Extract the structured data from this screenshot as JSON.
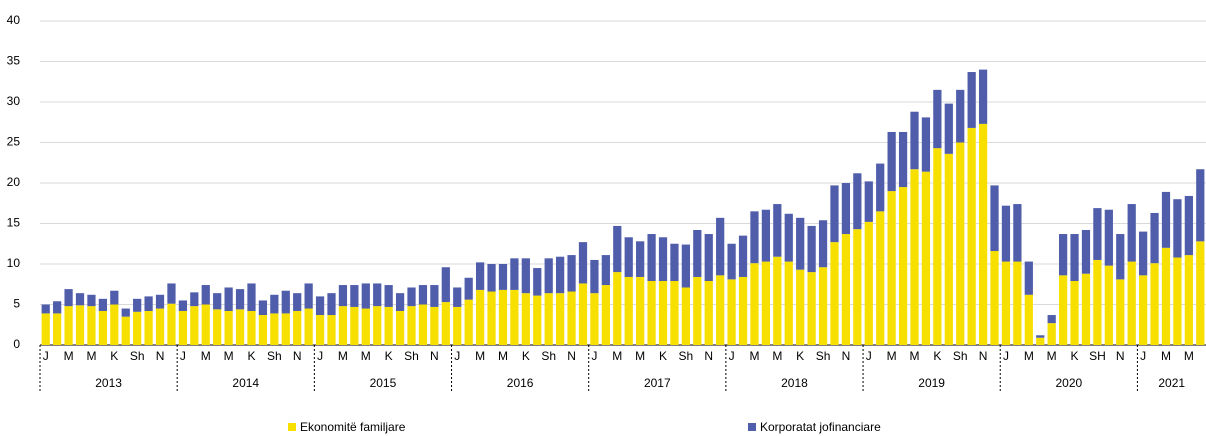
{
  "chart_data": {
    "type": "stacked_bar",
    "categories": [
      "J",
      null,
      "M",
      null,
      "M",
      null,
      "K",
      null,
      "Sh",
      null,
      "N",
      null,
      "J",
      null,
      "M",
      null,
      "M",
      null,
      "K",
      null,
      "Sh",
      null,
      "N",
      null,
      "J",
      null,
      "M",
      null,
      "M",
      null,
      "K",
      null,
      "Sh",
      null,
      "N",
      null,
      "J",
      null,
      "M",
      null,
      "M",
      null,
      "K",
      null,
      "Sh",
      null,
      "N",
      null,
      "J",
      null,
      "M",
      null,
      "M",
      null,
      "K",
      null,
      "Sh",
      null,
      "N",
      null,
      "J",
      null,
      "M",
      null,
      "M",
      null,
      "K",
      null,
      "Sh",
      null,
      "N",
      null,
      "J",
      null,
      "M",
      null,
      "M",
      null,
      "K",
      null,
      "Sh",
      null,
      "N",
      null,
      "J",
      null,
      "M",
      null,
      "M",
      null,
      "K",
      null,
      "SH",
      null,
      "N",
      null,
      "J",
      null,
      "M",
      null,
      "M",
      null
    ],
    "years": [
      "2013",
      "2014",
      "2015",
      "2016",
      "2017",
      "2018",
      "2019",
      "2020",
      "2021"
    ],
    "series": [
      {
        "name": "Ekonomitë familjare",
        "color": "#f7e000",
        "values": [
          3.9,
          3.9,
          4.8,
          4.9,
          4.8,
          4.2,
          5.0,
          3.5,
          4.1,
          4.2,
          4.5,
          5.1,
          4.2,
          4.8,
          5.0,
          4.4,
          4.2,
          4.4,
          4.2,
          3.7,
          3.9,
          3.9,
          4.2,
          4.5,
          3.7,
          3.7,
          4.8,
          4.7,
          4.5,
          4.8,
          4.7,
          4.2,
          4.8,
          5.0,
          4.7,
          5.3,
          4.7,
          5.6,
          6.8,
          6.6,
          6.8,
          6.8,
          6.4,
          6.1,
          6.4,
          6.4,
          6.6,
          7.6,
          6.4,
          7.4,
          9.0,
          8.4,
          8.4,
          7.9,
          7.9,
          7.9,
          7.1,
          8.4,
          7.9,
          8.6,
          8.1,
          8.4,
          10.1,
          10.3,
          10.9,
          10.3,
          9.3,
          9.0,
          9.6,
          12.7,
          13.7,
          14.3,
          15.2,
          16.5,
          19.0,
          19.5,
          21.7,
          21.4,
          24.3,
          23.6,
          25.0,
          26.8,
          27.3,
          11.6,
          10.3,
          10.3,
          6.2,
          0.9,
          2.7,
          8.6,
          7.9,
          8.8,
          10.5,
          9.8,
          8.1,
          10.3,
          8.6,
          10.1,
          12.0,
          10.8,
          11.1,
          12.8
        ]
      },
      {
        "name": "Korporatat jofinanciare",
        "color": "#4f5daa",
        "values": [
          1.1,
          1.5,
          2.1,
          1.5,
          1.4,
          1.5,
          1.7,
          1.0,
          1.6,
          1.8,
          1.7,
          2.5,
          1.3,
          1.7,
          2.4,
          2.0,
          2.9,
          2.5,
          3.4,
          1.8,
          2.3,
          2.8,
          2.2,
          3.1,
          2.3,
          2.7,
          2.6,
          2.7,
          3.1,
          2.8,
          2.7,
          2.2,
          2.3,
          2.4,
          2.7,
          4.3,
          2.4,
          2.7,
          3.4,
          3.4,
          3.2,
          3.9,
          4.3,
          3.4,
          4.3,
          4.5,
          4.5,
          5.1,
          4.1,
          3.7,
          5.7,
          4.9,
          4.4,
          5.8,
          5.4,
          4.6,
          5.3,
          5.8,
          5.8,
          7.1,
          4.4,
          5.1,
          6.4,
          6.4,
          6.5,
          5.9,
          6.4,
          5.7,
          5.8,
          7.0,
          6.3,
          6.9,
          5.0,
          5.9,
          7.3,
          6.8,
          7.1,
          6.7,
          7.2,
          6.2,
          6.5,
          6.9,
          6.7,
          8.1,
          6.9,
          7.1,
          4.1,
          0.3,
          1.0,
          5.1,
          5.8,
          5.4,
          6.4,
          6.9,
          5.6,
          7.1,
          5.4,
          6.2,
          6.9,
          7.2,
          7.3,
          8.9
        ]
      }
    ],
    "ylim": [
      0,
      40
    ],
    "yticks": [
      0,
      5,
      10,
      15,
      20,
      25,
      30,
      35,
      40
    ],
    "grid": true
  }
}
